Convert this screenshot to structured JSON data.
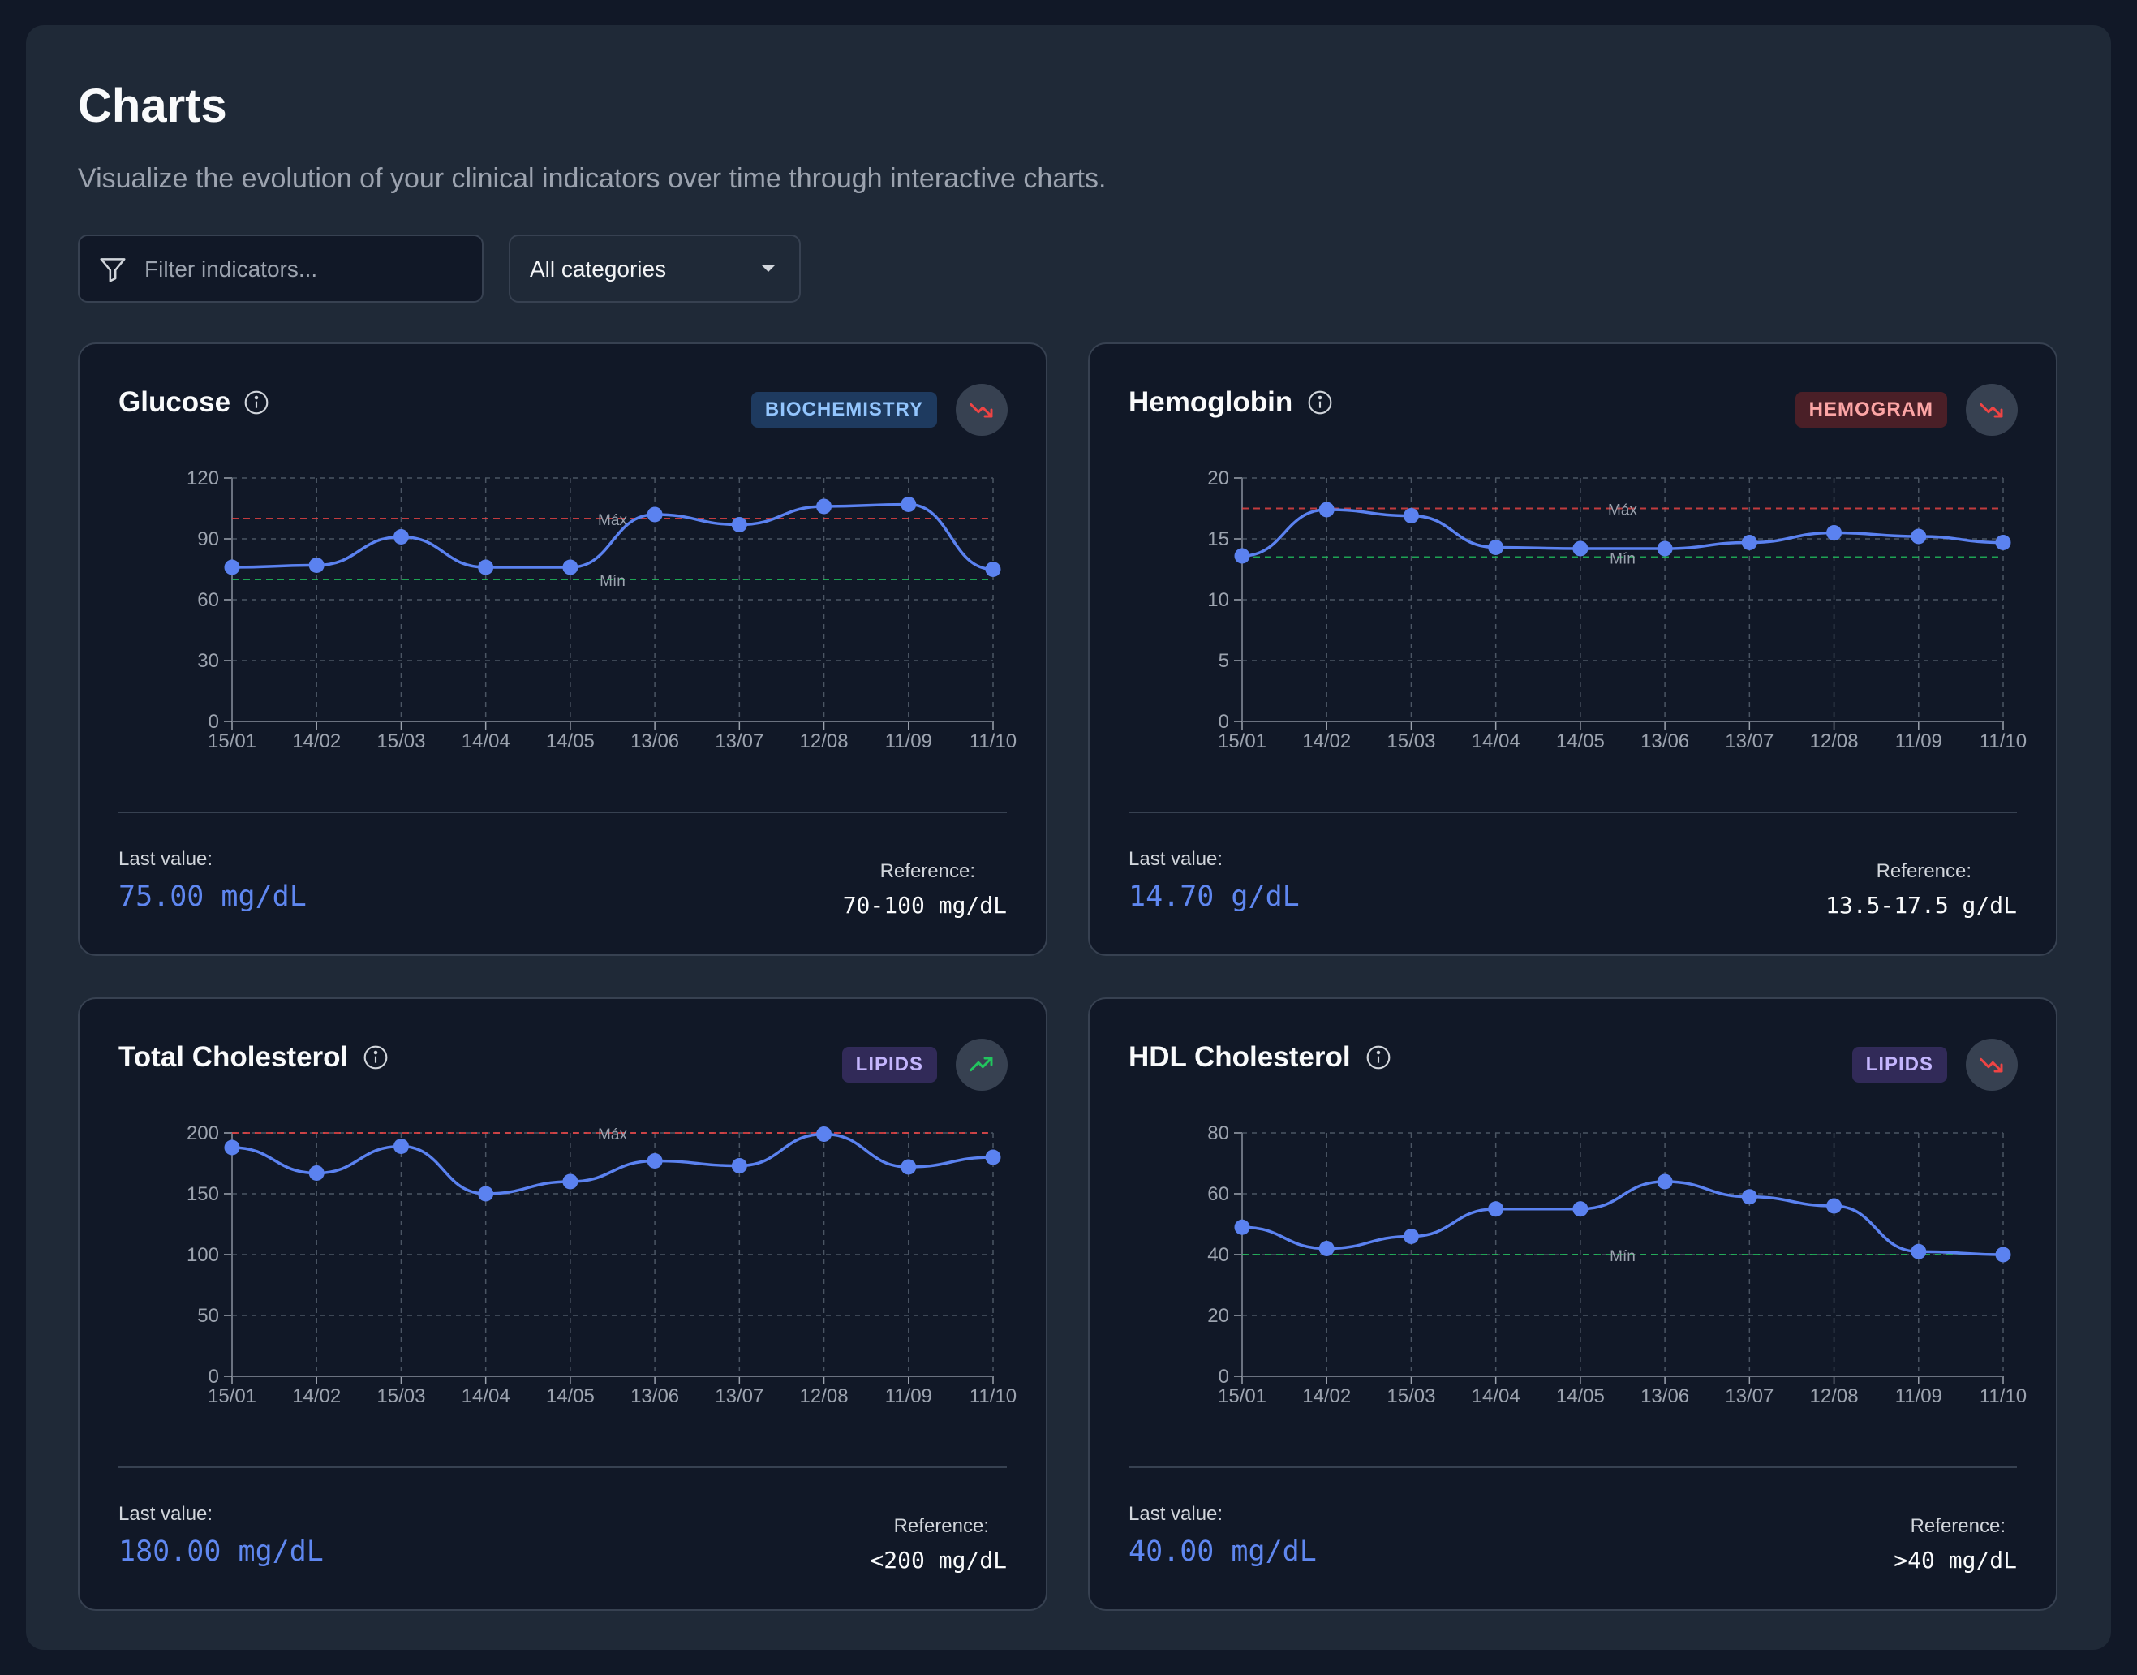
{
  "header": {
    "title": "Charts",
    "subtitle": "Visualize the evolution of your clinical indicators over time through interactive charts."
  },
  "filter": {
    "placeholder": "Filter indicators..."
  },
  "category_select": {
    "selected": "All categories"
  },
  "labels": {
    "last_value": "Last value:",
    "reference": "Reference:",
    "max": "Máx",
    "min": "Mín"
  },
  "colors": {
    "line": "#5b82f0",
    "max_line": "#ef4444",
    "min_line": "#22c55e",
    "grid": "#4b5563",
    "trend_down": "#ef4444",
    "trend_up": "#22c55e"
  },
  "cards": [
    {
      "title": "Glucose",
      "badge": "BIOCHEMISTRY",
      "badge_style": "blue",
      "trend": "down",
      "last_value": "75.00 mg/dL",
      "reference": "70-100 mg/dL"
    },
    {
      "title": "Hemoglobin",
      "badge": "HEMOGRAM",
      "badge_style": "red",
      "trend": "down",
      "last_value": "14.70 g/dL",
      "reference": "13.5-17.5 g/dL"
    },
    {
      "title": "Total Cholesterol",
      "badge": "LIPIDS",
      "badge_style": "purple",
      "trend": "up",
      "last_value": "180.00 mg/dL",
      "reference": "<200 mg/dL"
    },
    {
      "title": "HDL Cholesterol",
      "badge": "LIPIDS",
      "badge_style": "purple",
      "trend": "down",
      "last_value": "40.00 mg/dL",
      "reference": ">40 mg/dL"
    }
  ],
  "chart_data": [
    {
      "type": "line",
      "title": "Glucose",
      "x": [
        "15/01",
        "14/02",
        "15/03",
        "14/04",
        "14/05",
        "13/06",
        "13/07",
        "12/08",
        "11/09",
        "11/10"
      ],
      "series": [
        {
          "values": [
            76,
            77,
            91,
            76,
            76,
            102,
            97,
            106,
            107,
            75
          ]
        }
      ],
      "ylim": [
        0,
        120
      ],
      "yticks": [
        0,
        30,
        60,
        90,
        120
      ],
      "max_ref": 100,
      "min_ref": 70,
      "grid": true
    },
    {
      "type": "line",
      "title": "Hemoglobin",
      "x": [
        "15/01",
        "14/02",
        "15/03",
        "14/04",
        "14/05",
        "13/06",
        "13/07",
        "12/08",
        "11/09",
        "11/10"
      ],
      "series": [
        {
          "values": [
            13.6,
            17.4,
            16.9,
            14.3,
            14.2,
            14.2,
            14.7,
            15.5,
            15.2,
            14.7
          ]
        }
      ],
      "ylim": [
        0,
        20
      ],
      "yticks": [
        0,
        5,
        10,
        15,
        20
      ],
      "max_ref": 17.5,
      "min_ref": 13.5,
      "grid": true
    },
    {
      "type": "line",
      "title": "Total Cholesterol",
      "x": [
        "15/01",
        "14/02",
        "15/03",
        "14/04",
        "14/05",
        "13/06",
        "13/07",
        "12/08",
        "11/09",
        "11/10"
      ],
      "series": [
        {
          "values": [
            188,
            167,
            189,
            150,
            160,
            177,
            173,
            199,
            172,
            180
          ]
        }
      ],
      "ylim": [
        0,
        200
      ],
      "yticks": [
        0,
        50,
        100,
        150,
        200
      ],
      "max_ref": 200,
      "min_ref": null,
      "grid": true
    },
    {
      "type": "line",
      "title": "HDL Cholesterol",
      "x": [
        "15/01",
        "14/02",
        "15/03",
        "14/04",
        "14/05",
        "13/06",
        "13/07",
        "12/08",
        "11/09",
        "11/10"
      ],
      "series": [
        {
          "values": [
            49,
            42,
            46,
            55,
            55,
            64,
            59,
            56,
            41,
            40
          ]
        }
      ],
      "ylim": [
        0,
        80
      ],
      "yticks": [
        0,
        20,
        40,
        60,
        80
      ],
      "max_ref": null,
      "min_ref": 40,
      "grid": true
    }
  ]
}
